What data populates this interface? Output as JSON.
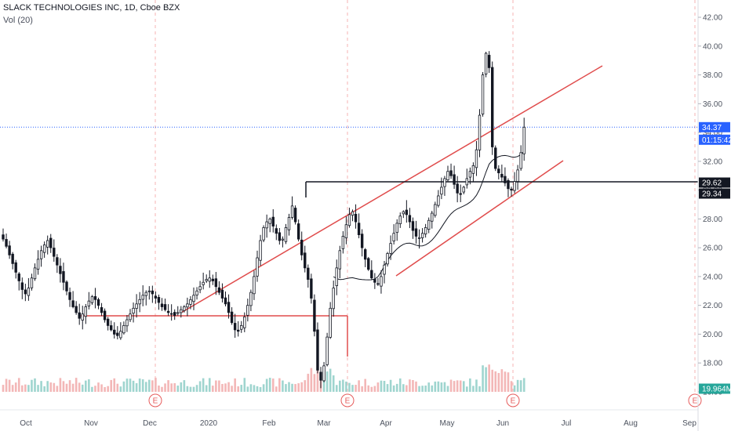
{
  "header": {
    "title": "SLACK TECHNOLOGIES INC, 1D, Cboe BZX",
    "volume_label": "Vol (20)"
  },
  "chart_data": {
    "type": "candlestick",
    "title": "SLACK TECHNOLOGIES INC, 1D, Cboe BZX",
    "indicator": "Vol (20)",
    "x_ticks": [
      "Oct",
      "Nov",
      "Dec",
      "2020",
      "Feb",
      "Mar",
      "Apr",
      "May",
      "Jun",
      "Jul",
      "Aug",
      "Sep"
    ],
    "y_ticks": [
      "16.00",
      "18.00",
      "20.00",
      "22.00",
      "24.00",
      "26.00",
      "28.00",
      "30.00",
      "32.00",
      "34.00",
      "36.00",
      "38.00",
      "40.00",
      "42.00"
    ],
    "ylim": [
      14.8,
      43.2
    ],
    "last_price": "34.37",
    "countdown": "01:15:42",
    "level_labels": [
      "29.62",
      "29.34"
    ],
    "volume_label": "19.964M",
    "earnings_marker": "E",
    "earnings_months": [
      "Dec",
      "Mar",
      "Jun",
      "Sep"
    ],
    "colors": {
      "up": "#ffffff",
      "down": "#131722",
      "wick": "#131722",
      "trendline": "#e04c4c",
      "ma": "#131722",
      "price_line": "#2962ff",
      "volume_up": "#9fd5cf",
      "volume_down": "#f3b7b7"
    },
    "closes": [
      26.6,
      26.1,
      25.5,
      24.9,
      24.3,
      23.7,
      23.1,
      22.8,
      23.2,
      23.9,
      24.6,
      25.2,
      25.8,
      26.2,
      26.5,
      26.0,
      25.4,
      24.8,
      24.2,
      23.6,
      23.0,
      22.4,
      21.9,
      21.5,
      21.1,
      21.4,
      21.9,
      22.3,
      22.6,
      22.4,
      22.0,
      21.5,
      21.0,
      20.6,
      20.3,
      20.0,
      19.9,
      20.2,
      20.6,
      21.0,
      21.4,
      21.8,
      22.1,
      22.4,
      22.7,
      22.9,
      23.0,
      22.8,
      22.5,
      22.2,
      21.9,
      21.7,
      21.5,
      21.4,
      21.3,
      21.5,
      21.7,
      21.9,
      22.1,
      22.4,
      22.7,
      23.0,
      23.3,
      23.6,
      23.8,
      23.9,
      23.7,
      23.3,
      22.9,
      22.5,
      22.1,
      21.5,
      20.8,
      20.3,
      20.2,
      20.6,
      21.2,
      22.0,
      22.9,
      24.0,
      25.3,
      26.5,
      27.4,
      27.8,
      28.0,
      27.5,
      27.0,
      26.5,
      26.6,
      27.4,
      28.1,
      28.9,
      27.8,
      26.6,
      25.5,
      24.6,
      23.8,
      22.5,
      20.2,
      17.5,
      16.8,
      17.8,
      19.8,
      21.8,
      23.2,
      24.6,
      25.8,
      26.8,
      27.6,
      28.3,
      28.5,
      27.8,
      26.9,
      26.0,
      25.2,
      24.5,
      23.9,
      23.6,
      23.5,
      24.0,
      24.8,
      25.6,
      26.3,
      27.0,
      27.7,
      28.2,
      28.5,
      28.3,
      27.8,
      27.2,
      26.8,
      26.7,
      27.0,
      27.4,
      27.9,
      28.4,
      29.0,
      29.6,
      30.2,
      30.8,
      31.3,
      31.0,
      30.4,
      29.8,
      29.7,
      30.2,
      30.8,
      31.3,
      31.7,
      32.8,
      35.2,
      38.0,
      39.5,
      38.5,
      33.0,
      31.5,
      31.2,
      30.9,
      30.5,
      30.1,
      30.0,
      30.6,
      31.4,
      32.6,
      34.37
    ]
  }
}
